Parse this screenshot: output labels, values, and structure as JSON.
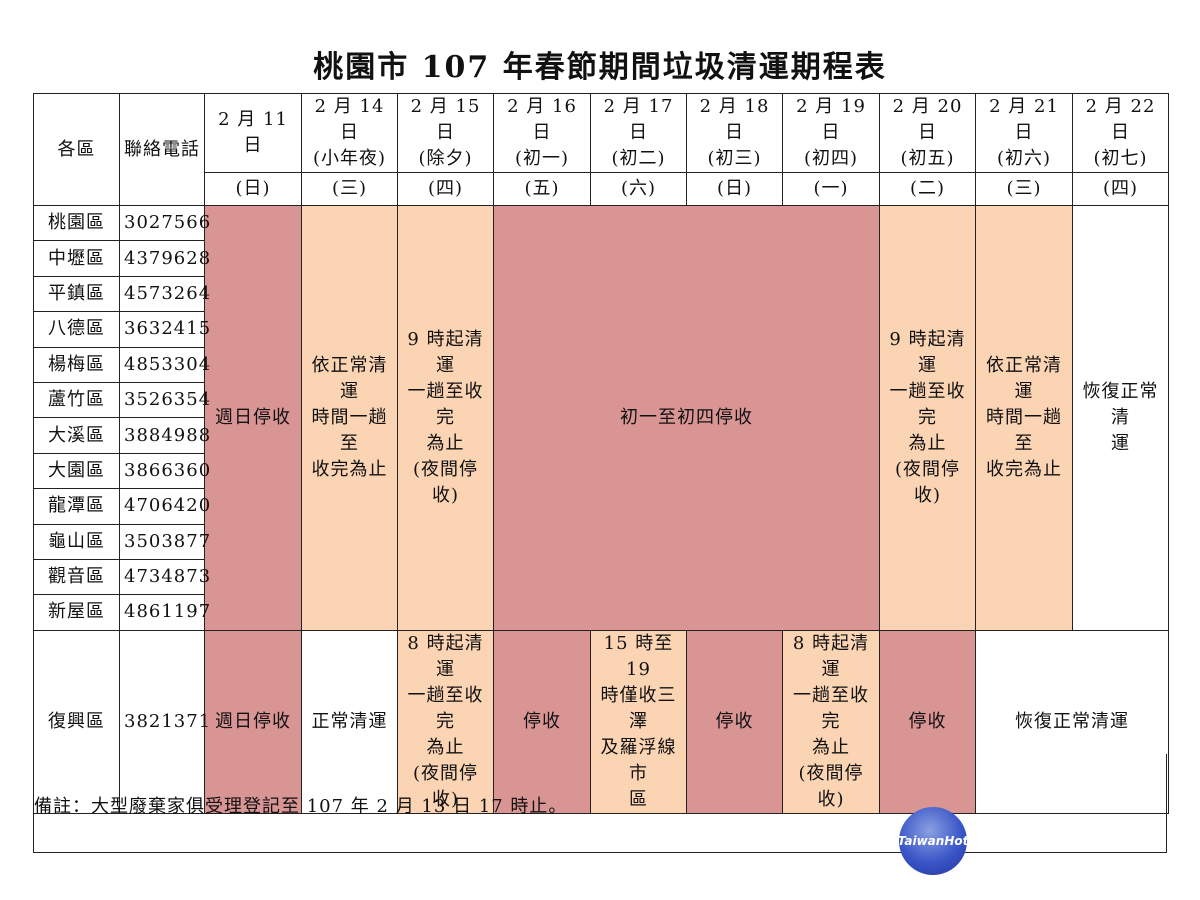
{
  "title": "桃園市 107 年春節期間垃圾清運期程表",
  "header": {
    "district_label": "各區",
    "phone_label": "聯絡電話",
    "dates": [
      {
        "date": "2 月 11 日",
        "sub": "",
        "weekday": "(日)"
      },
      {
        "date": "2 月 14 日",
        "sub": "(小年夜)",
        "weekday": "(三)"
      },
      {
        "date": "2 月 15 日",
        "sub": "(除夕)",
        "weekday": "(四)"
      },
      {
        "date": "2 月 16 日",
        "sub": "(初一)",
        "weekday": "(五)"
      },
      {
        "date": "2 月 17 日",
        "sub": "(初二)",
        "weekday": "(六)"
      },
      {
        "date": "2 月 18 日",
        "sub": "(初三)",
        "weekday": "(日)"
      },
      {
        "date": "2 月 19 日",
        "sub": "(初四)",
        "weekday": "(一)"
      },
      {
        "date": "2 月 20 日",
        "sub": "(初五)",
        "weekday": "(二)"
      },
      {
        "date": "2 月 21 日",
        "sub": "(初六)",
        "weekday": "(三)"
      },
      {
        "date": "2 月 22 日",
        "sub": "(初七)",
        "weekday": "(四)"
      }
    ]
  },
  "districts": [
    {
      "name": "桃園區",
      "phone": "3027566"
    },
    {
      "name": "中壢區",
      "phone": "4379628"
    },
    {
      "name": "平鎮區",
      "phone": "4573264"
    },
    {
      "name": "八德區",
      "phone": "3632415"
    },
    {
      "name": "楊梅區",
      "phone": "4853304"
    },
    {
      "name": "蘆竹區",
      "phone": "3526354"
    },
    {
      "name": "大溪區",
      "phone": "3884988"
    },
    {
      "name": "大園區",
      "phone": "3866360"
    },
    {
      "name": "龍潭區",
      "phone": "4706420"
    },
    {
      "name": "龜山區",
      "phone": "3503877"
    },
    {
      "name": "觀音區",
      "phone": "4734873"
    },
    {
      "name": "新屋區",
      "phone": "4861197"
    }
  ],
  "main_schedule": {
    "feb11": "週日停收",
    "feb14": "依正常清運\n時間一趟至\n收完為止",
    "feb15": "9 時起清運\n一趟至收完\n為止\n(夜間停收)",
    "feb16_19": "初一至初四停收",
    "feb20": "9 時起清運\n一趟至收完\n為止\n(夜間停收)",
    "feb21": "依正常清運\n時間一趟至\n收完為止",
    "feb22": "恢復正常清\n運"
  },
  "fuxing": {
    "name": "復興區",
    "phone": "3821371",
    "feb11": "週日停收",
    "feb14": "正常清運",
    "feb15": "8 時起清運\n一趟至收完\n為止\n(夜間停收)",
    "feb16": "停收",
    "feb17": "15 時至 19\n時僅收三澤\n及羅浮線市\n區",
    "feb18": "停收",
    "feb19": "8 時起清運\n一趟至收完\n為止\n(夜間停收)",
    "feb20": "停收",
    "feb21_22": "恢復正常清運"
  },
  "note": "備註：大型廢棄家俱受理登記至 107 年 2 月 13 日 17 時止。",
  "watermark": "TaiwanHot",
  "colors": {
    "closed": "#d99594",
    "partial": "#fbd4b4",
    "normal": "#ffffff"
  }
}
